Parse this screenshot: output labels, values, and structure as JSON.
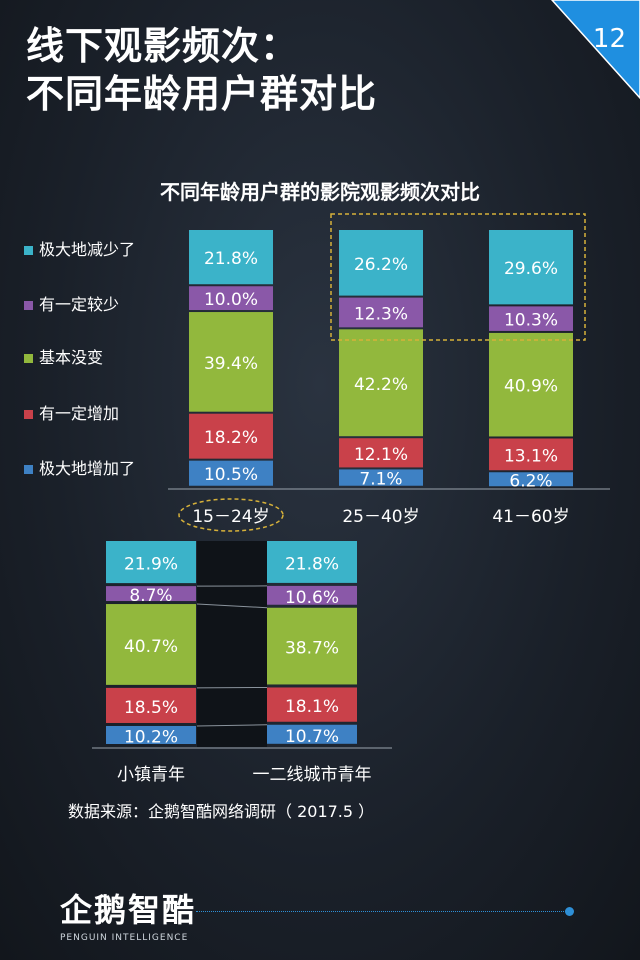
{
  "page": {
    "title_line1": "线下观影频次：",
    "title_line2": "不同年龄用户群对比",
    "page_number": "12"
  },
  "colors": {
    "jidadi_jianshao": "#3bb3c9",
    "youyiding_jiaoshao": "#8a58a8",
    "jiben_meibian": "#92b83d",
    "youyiding_zengjia": "#c9414a",
    "jidadi_zengjia": "#3e81c4"
  },
  "chart_data": [
    {
      "type": "bar",
      "stacked": true,
      "title": "不同年龄用户群的影院观影频次对比",
      "categories": [
        "15－24岁",
        "25－40岁",
        "41－60岁"
      ],
      "series": [
        {
          "name": "极大地减少了",
          "values": [
            21.8,
            26.2,
            29.6
          ],
          "labels": [
            "21.8%",
            "26.2%",
            "29.6%"
          ]
        },
        {
          "name": "有一定较少",
          "values": [
            10.0,
            12.3,
            10.3
          ],
          "labels": [
            "10.0%",
            "12.3%",
            "10.3%"
          ]
        },
        {
          "name": "基本没变",
          "values": [
            39.4,
            42.2,
            40.9
          ],
          "labels": [
            "39.4%",
            "42.2%",
            "40.9%"
          ]
        },
        {
          "name": "有一定增加",
          "values": [
            18.2,
            12.1,
            13.1
          ],
          "labels": [
            "18.2%",
            "12.1%",
            "13.1%"
          ]
        },
        {
          "name": "极大地增加了",
          "values": [
            10.5,
            7.1,
            6.2
          ],
          "labels": [
            "10.5%",
            "7.1%",
            "6.2%"
          ]
        }
      ],
      "legend_position": "left",
      "ylim": [
        0,
        100
      ]
    },
    {
      "type": "bar",
      "stacked": true,
      "title": "",
      "categories": [
        "小镇青年",
        "一二线城市青年"
      ],
      "series": [
        {
          "name": "极大地减少了",
          "values": [
            21.9,
            21.8
          ],
          "labels": [
            "21.9%",
            "21.8%"
          ]
        },
        {
          "name": "有一定较少",
          "values": [
            8.7,
            10.6
          ],
          "labels": [
            "8.7%",
            "10.6%"
          ]
        },
        {
          "name": "基本没变",
          "values": [
            40.7,
            38.7
          ],
          "labels": [
            "40.7%",
            "38.7%"
          ]
        },
        {
          "name": "有一定增加",
          "values": [
            18.5,
            18.1
          ],
          "labels": [
            "18.5%",
            "18.1%"
          ]
        },
        {
          "name": "极大地增加了",
          "values": [
            10.2,
            10.7
          ],
          "labels": [
            "10.2%",
            "10.7%"
          ]
        }
      ],
      "ylim": [
        0,
        100
      ]
    }
  ],
  "source": "数据来源：企鹅智酷网络调研（  2017.5 ）",
  "logo": {
    "name": "企鹅智酷",
    "subtitle": "PENGUIN INTELLIGENCE"
  }
}
